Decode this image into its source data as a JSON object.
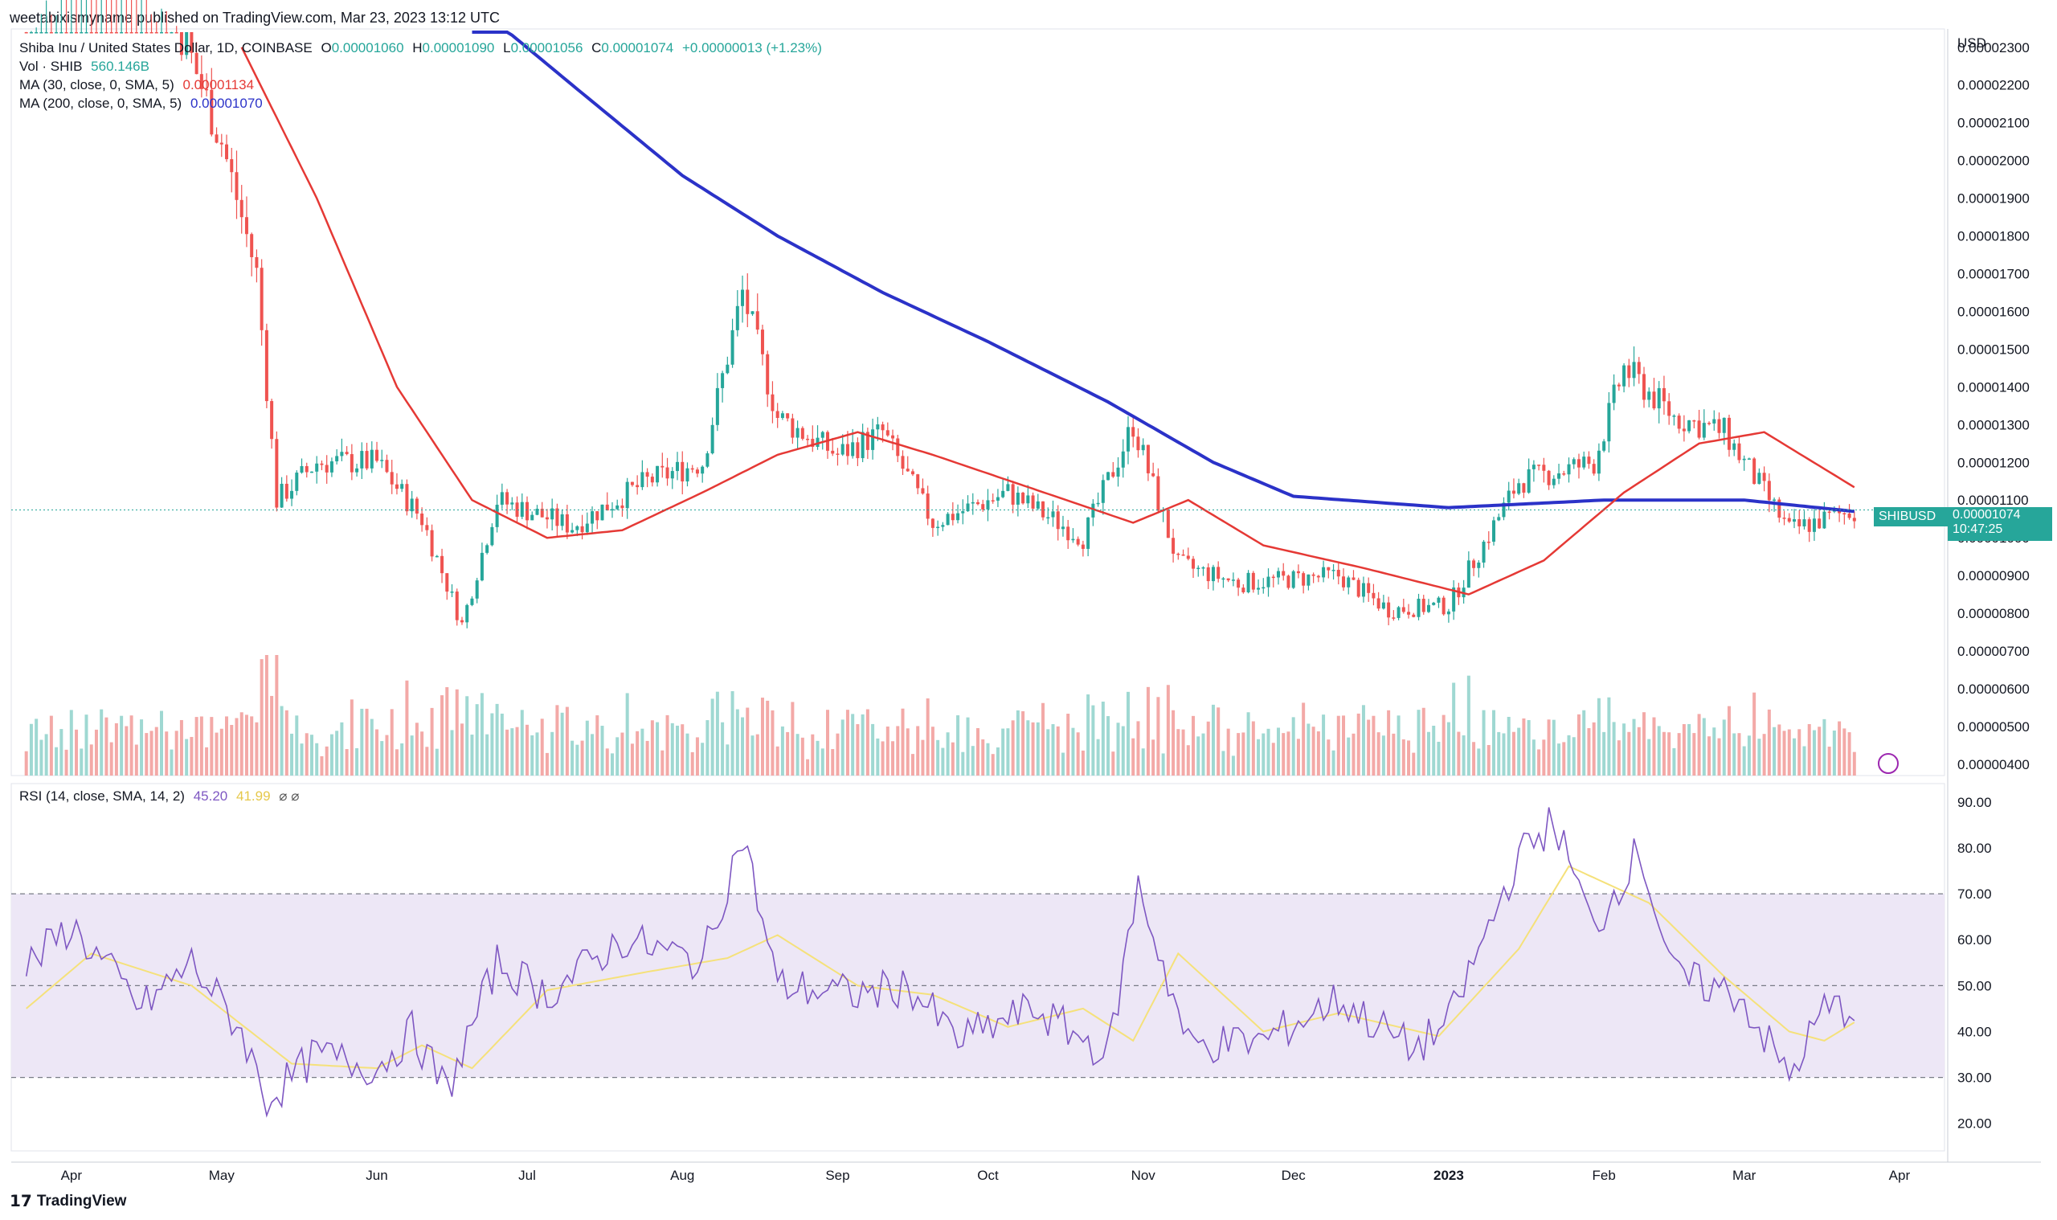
{
  "header": {
    "published": "weetabixismyname published on TradingView.com, Mar 23, 2023 13:12 UTC"
  },
  "legend": {
    "symbol": "Shiba Inu / United States Dollar, 1D, COINBASE",
    "o_label": "O",
    "o": "0.00001060",
    "h_label": "H",
    "h": "0.00001090",
    "l_label": "L",
    "l": "0.00001056",
    "c_label": "C",
    "c": "0.00001074",
    "change": "+0.00000013 (+1.23%)",
    "vol_label": "Vol · SHIB",
    "vol": "560.146B",
    "ma30_label": "MA (30, close, 0, SMA, 5)",
    "ma30": "0.00001134",
    "ma200_label": "MA (200, close, 0, SMA, 5)",
    "ma200": "0.00001070",
    "rsi_label": "RSI (14, close, SMA, 14, 2)",
    "rsi": "45.20",
    "rsi_ma": "41.99"
  },
  "price_tag": {
    "symbol": "SHIBUSD",
    "price": "0.00001074",
    "countdown": "10:47:25"
  },
  "footer": {
    "logo_text": "TradingView"
  },
  "colors": {
    "up": "#26a69a",
    "down": "#ef5350",
    "ma30": "#e53935",
    "ma200": "#2b32c8",
    "rsi": "#7e57c2",
    "rsi_ma": "#f5e17a",
    "rsi_band": "#ede7f6"
  },
  "chart_data": {
    "type": "candlestick",
    "price_axis": {
      "unit": "USD",
      "ticks": [
        "0.00002300",
        "0.00002200",
        "0.00002100",
        "0.00002000",
        "0.00001900",
        "0.00001800",
        "0.00001700",
        "0.00001600",
        "0.00001500",
        "0.00001400",
        "0.00001300",
        "0.00001200",
        "0.00001100",
        "0.00001000",
        "0.00000900",
        "0.00000800",
        "0.00000700",
        "0.00000600",
        "0.00000500",
        "0.00000400"
      ]
    },
    "rsi_axis": {
      "ticks": [
        "90.00",
        "80.00",
        "70.00",
        "60.00",
        "50.00",
        "40.00",
        "30.00",
        "20.00"
      ],
      "bands": [
        30,
        50,
        70
      ]
    },
    "time_axis": {
      "labels": [
        "Apr",
        "May",
        "Jun",
        "Jul",
        "Aug",
        "Sep",
        "Oct",
        "Nov",
        "Dec",
        "2023",
        "Feb",
        "Mar",
        "Apr"
      ]
    },
    "price_closes": [
      {
        "date": "2022-03-23",
        "close": 2.35e-05
      },
      {
        "date": "2022-04-05",
        "close": 2.75e-05
      },
      {
        "date": "2022-04-20",
        "close": 2.45e-05
      },
      {
        "date": "2022-05-01",
        "close": 2.05e-05
      },
      {
        "date": "2022-05-08",
        "close": 1.7e-05
      },
      {
        "date": "2022-05-12",
        "close": 1.1e-05
      },
      {
        "date": "2022-05-20",
        "close": 1.2e-05
      },
      {
        "date": "2022-06-01",
        "close": 1.2e-05
      },
      {
        "date": "2022-06-10",
        "close": 1.05e-05
      },
      {
        "date": "2022-06-18",
        "close": 7.7e-06
      },
      {
        "date": "2022-06-25",
        "close": 1.1e-05
      },
      {
        "date": "2022-07-10",
        "close": 1.03e-05
      },
      {
        "date": "2022-07-25",
        "close": 1.15e-05
      },
      {
        "date": "2022-08-05",
        "close": 1.2e-05
      },
      {
        "date": "2022-08-13",
        "close": 1.65e-05
      },
      {
        "date": "2022-08-20",
        "close": 1.32e-05
      },
      {
        "date": "2022-09-01",
        "close": 1.22e-05
      },
      {
        "date": "2022-09-10",
        "close": 1.28e-05
      },
      {
        "date": "2022-09-20",
        "close": 1.04e-05
      },
      {
        "date": "2022-10-05",
        "close": 1.12e-05
      },
      {
        "date": "2022-10-20",
        "close": 1e-05
      },
      {
        "date": "2022-10-30",
        "close": 1.3e-05
      },
      {
        "date": "2022-11-08",
        "close": 9.3e-06
      },
      {
        "date": "2022-11-20",
        "close": 8.8e-06
      },
      {
        "date": "2022-12-10",
        "close": 9e-06
      },
      {
        "date": "2022-12-20",
        "close": 8.1e-06
      },
      {
        "date": "2023-01-01",
        "close": 8.2e-06
      },
      {
        "date": "2023-01-15",
        "close": 1.15e-05
      },
      {
        "date": "2023-01-30",
        "close": 1.2e-05
      },
      {
        "date": "2023-02-05",
        "close": 1.45e-05
      },
      {
        "date": "2023-02-15",
        "close": 1.32e-05
      },
      {
        "date": "2023-02-25",
        "close": 1.28e-05
      },
      {
        "date": "2023-03-10",
        "close": 1.02e-05
      },
      {
        "date": "2023-03-23",
        "close": 1.074e-05
      }
    ],
    "ma30": [
      {
        "date": "2022-05-05",
        "value": 2.3e-05
      },
      {
        "date": "2022-05-20",
        "value": 1.9e-05
      },
      {
        "date": "2022-06-05",
        "value": 1.4e-05
      },
      {
        "date": "2022-06-20",
        "value": 1.1e-05
      },
      {
        "date": "2022-07-05",
        "value": 1e-05
      },
      {
        "date": "2022-07-20",
        "value": 1.02e-05
      },
      {
        "date": "2022-08-05",
        "value": 1.12e-05
      },
      {
        "date": "2022-08-20",
        "value": 1.22e-05
      },
      {
        "date": "2022-09-05",
        "value": 1.28e-05
      },
      {
        "date": "2022-09-20",
        "value": 1.22e-05
      },
      {
        "date": "2022-10-10",
        "value": 1.13e-05
      },
      {
        "date": "2022-10-30",
        "value": 1.04e-05
      },
      {
        "date": "2022-11-10",
        "value": 1.1e-05
      },
      {
        "date": "2022-11-25",
        "value": 9.8e-06
      },
      {
        "date": "2022-12-15",
        "value": 9.2e-06
      },
      {
        "date": "2023-01-05",
        "value": 8.5e-06
      },
      {
        "date": "2023-01-20",
        "value": 9.4e-06
      },
      {
        "date": "2023-02-05",
        "value": 1.12e-05
      },
      {
        "date": "2023-02-20",
        "value": 1.25e-05
      },
      {
        "date": "2023-03-05",
        "value": 1.28e-05
      },
      {
        "date": "2023-03-23",
        "value": 1.134e-05
      }
    ],
    "ma200": [
      {
        "date": "2022-06-20",
        "value": 2.42e-05
      },
      {
        "date": "2022-07-10",
        "value": 2.2e-05
      },
      {
        "date": "2022-08-01",
        "value": 1.96e-05
      },
      {
        "date": "2022-08-20",
        "value": 1.8e-05
      },
      {
        "date": "2022-09-10",
        "value": 1.65e-05
      },
      {
        "date": "2022-10-01",
        "value": 1.52e-05
      },
      {
        "date": "2022-10-25",
        "value": 1.36e-05
      },
      {
        "date": "2022-11-15",
        "value": 1.2e-05
      },
      {
        "date": "2022-12-01",
        "value": 1.11e-05
      },
      {
        "date": "2023-01-01",
        "value": 1.08e-05
      },
      {
        "date": "2023-02-01",
        "value": 1.1e-05
      },
      {
        "date": "2023-03-01",
        "value": 1.1e-05
      },
      {
        "date": "2023-03-23",
        "value": 1.07e-05
      }
    ],
    "rsi": [
      {
        "date": "2022-03-23",
        "value": 54
      },
      {
        "date": "2022-04-01",
        "value": 63
      },
      {
        "date": "2022-04-15",
        "value": 45
      },
      {
        "date": "2022-04-25",
        "value": 55
      },
      {
        "date": "2022-05-05",
        "value": 40
      },
      {
        "date": "2022-05-10",
        "value": 25
      },
      {
        "date": "2022-05-20",
        "value": 35
      },
      {
        "date": "2022-06-01",
        "value": 32
      },
      {
        "date": "2022-06-08",
        "value": 40
      },
      {
        "date": "2022-06-15",
        "value": 27
      },
      {
        "date": "2022-06-25",
        "value": 55
      },
      {
        "date": "2022-07-05",
        "value": 48
      },
      {
        "date": "2022-07-20",
        "value": 60
      },
      {
        "date": "2022-08-05",
        "value": 55
      },
      {
        "date": "2022-08-13",
        "value": 83
      },
      {
        "date": "2022-08-20",
        "value": 50
      },
      {
        "date": "2022-09-05",
        "value": 48
      },
      {
        "date": "2022-09-15",
        "value": 50
      },
      {
        "date": "2022-09-25",
        "value": 38
      },
      {
        "date": "2022-10-10",
        "value": 45
      },
      {
        "date": "2022-10-25",
        "value": 35
      },
      {
        "date": "2022-10-31",
        "value": 72
      },
      {
        "date": "2022-11-10",
        "value": 37
      },
      {
        "date": "2022-11-25",
        "value": 38
      },
      {
        "date": "2022-12-10",
        "value": 47
      },
      {
        "date": "2022-12-25",
        "value": 36
      },
      {
        "date": "2023-01-01",
        "value": 42
      },
      {
        "date": "2023-01-15",
        "value": 78
      },
      {
        "date": "2023-01-22",
        "value": 86
      },
      {
        "date": "2023-01-30",
        "value": 62
      },
      {
        "date": "2023-02-08",
        "value": 80
      },
      {
        "date": "2023-02-15",
        "value": 52
      },
      {
        "date": "2023-02-28",
        "value": 48
      },
      {
        "date": "2023-03-10",
        "value": 30
      },
      {
        "date": "2023-03-17",
        "value": 45
      },
      {
        "date": "2023-03-23",
        "value": 45.2
      }
    ],
    "rsi_ma": [
      {
        "date": "2022-03-23",
        "value": 45
      },
      {
        "date": "2022-04-05",
        "value": 57
      },
      {
        "date": "2022-04-25",
        "value": 50
      },
      {
        "date": "2022-05-15",
        "value": 33
      },
      {
        "date": "2022-06-01",
        "value": 32
      },
      {
        "date": "2022-06-10",
        "value": 37
      },
      {
        "date": "2022-06-20",
        "value": 32
      },
      {
        "date": "2022-07-05",
        "value": 49
      },
      {
        "date": "2022-07-25",
        "value": 53
      },
      {
        "date": "2022-08-10",
        "value": 56
      },
      {
        "date": "2022-08-20",
        "value": 61
      },
      {
        "date": "2022-09-05",
        "value": 50
      },
      {
        "date": "2022-09-20",
        "value": 48
      },
      {
        "date": "2022-10-05",
        "value": 41
      },
      {
        "date": "2022-10-20",
        "value": 45
      },
      {
        "date": "2022-10-30",
        "value": 38
      },
      {
        "date": "2022-11-08",
        "value": 57
      },
      {
        "date": "2022-11-25",
        "value": 40
      },
      {
        "date": "2022-12-10",
        "value": 44
      },
      {
        "date": "2022-12-30",
        "value": 39
      },
      {
        "date": "2023-01-15",
        "value": 58
      },
      {
        "date": "2023-01-25",
        "value": 76
      },
      {
        "date": "2023-02-10",
        "value": 68
      },
      {
        "date": "2023-02-25",
        "value": 52
      },
      {
        "date": "2023-03-10",
        "value": 40
      },
      {
        "date": "2023-03-17",
        "value": 38
      },
      {
        "date": "2023-03-23",
        "value": 41.99
      }
    ]
  }
}
